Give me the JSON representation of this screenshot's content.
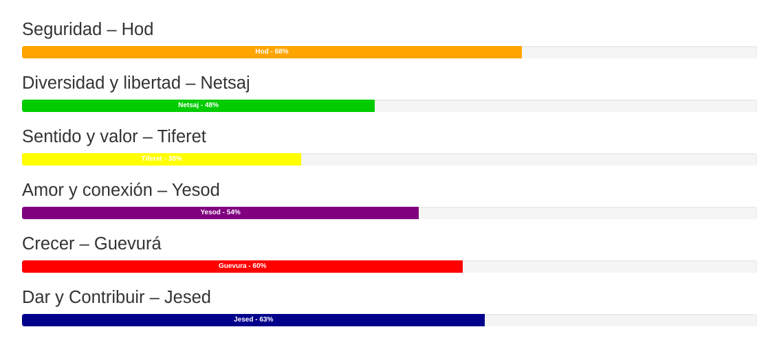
{
  "bars": [
    {
      "title": "Seguridad – Hod",
      "label": "Hod - 68%",
      "percent": 68,
      "color": "#ffa500"
    },
    {
      "title": "Diversidad y libertad – Netsaj",
      "label": "Netsaj - 48%",
      "percent": 48,
      "color": "#00cc00"
    },
    {
      "title": "Sentido y valor – Tiferet",
      "label": "Tiferet - 38%",
      "percent": 38,
      "color": "#ffff00"
    },
    {
      "title": "Amor y conexión – Yesod",
      "label": "Yesod - 54%",
      "percent": 54,
      "color": "#800080"
    },
    {
      "title": "Crecer – Guevurá",
      "label": "Guevura - 60%",
      "percent": 60,
      "color": "#ff0000"
    },
    {
      "title": "Dar y Contribuir – Jesed",
      "label": "Jesed - 63%",
      "percent": 63,
      "color": "#00008b"
    }
  ]
}
